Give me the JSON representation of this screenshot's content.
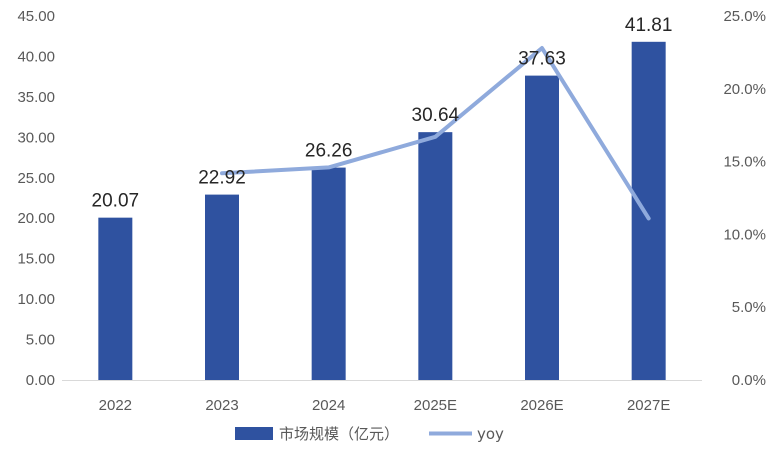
{
  "chart_data": {
    "type": "bar",
    "categories": [
      "2022",
      "2023",
      "2024",
      "2025E",
      "2026E",
      "2027E"
    ],
    "series": [
      {
        "name": "市场规模（亿元）",
        "type": "bar",
        "axis": "left",
        "color": "#2f52a0",
        "values": [
          20.07,
          22.92,
          26.26,
          30.64,
          37.63,
          41.81
        ],
        "labels": [
          "20.07",
          "22.92",
          "26.26",
          "30.64",
          "37.63",
          "41.81"
        ]
      },
      {
        "name": "yoy",
        "type": "line",
        "axis": "right",
        "color": "#8faadc",
        "values": [
          null,
          0.142,
          0.146,
          0.167,
          0.228,
          0.111
        ]
      }
    ],
    "y_left": {
      "range": [
        0,
        45
      ],
      "ticks": [
        0,
        5,
        10,
        15,
        20,
        25,
        30,
        35,
        40,
        45
      ],
      "tick_labels": [
        "0.00",
        "5.00",
        "10.00",
        "15.00",
        "20.00",
        "25.00",
        "30.00",
        "35.00",
        "40.00",
        "45.00"
      ]
    },
    "y_right": {
      "range": [
        0,
        0.25
      ],
      "ticks": [
        0,
        0.05,
        0.1,
        0.15,
        0.2,
        0.25
      ],
      "tick_labels": [
        "0.0%",
        "5.0%",
        "10.0%",
        "15.0%",
        "20.0%",
        "25.0%"
      ]
    },
    "grid": false,
    "legend": "bottom"
  }
}
